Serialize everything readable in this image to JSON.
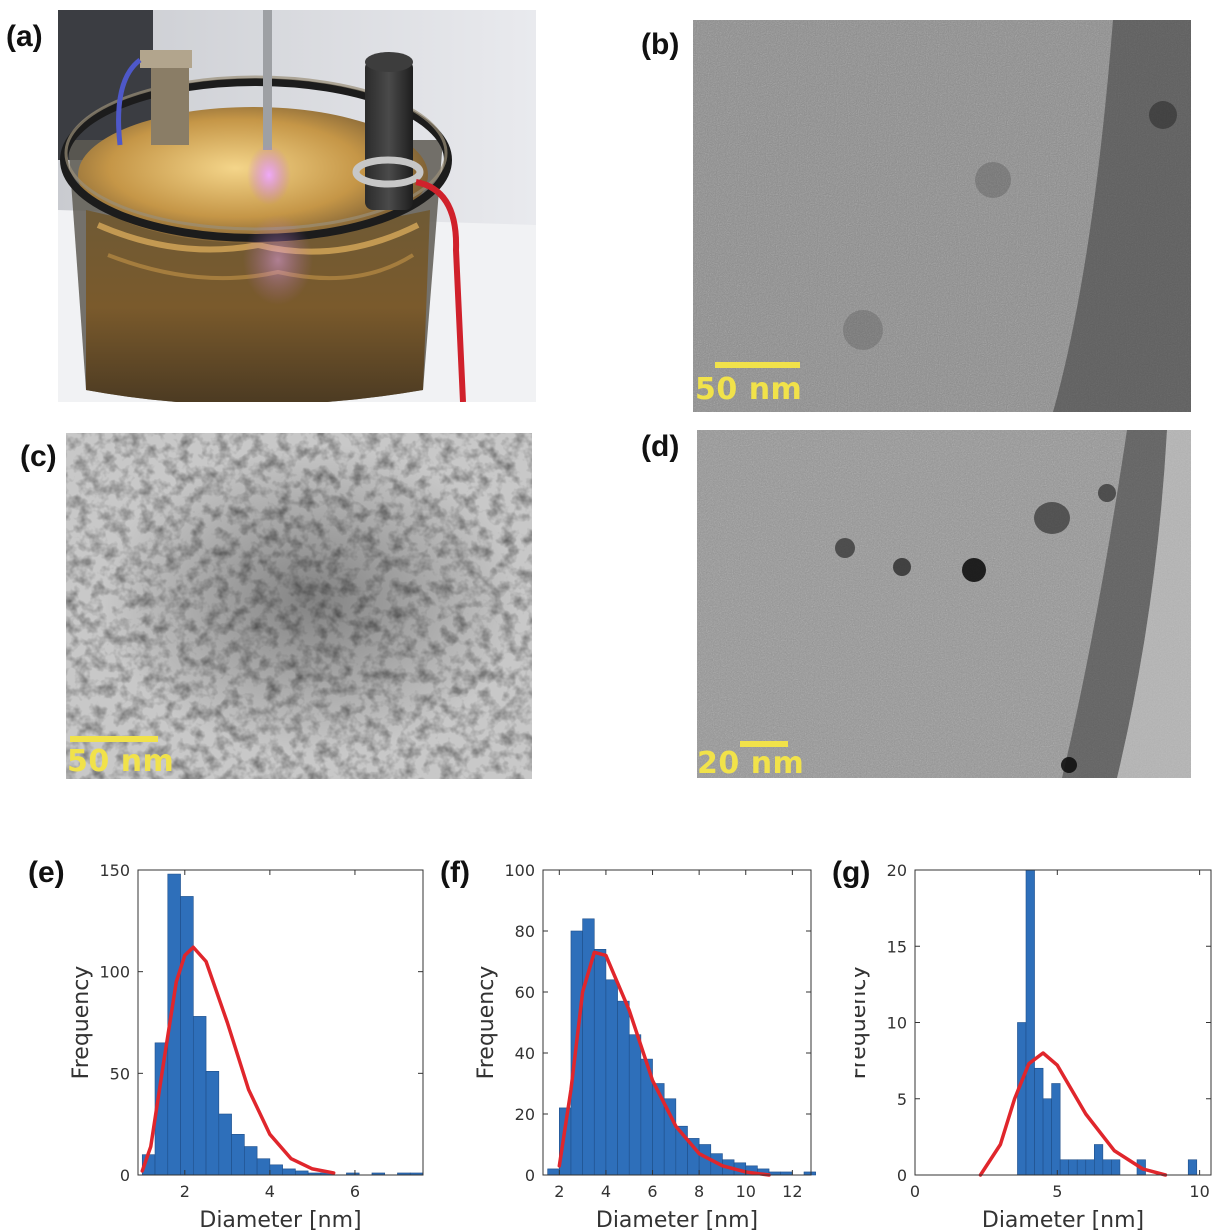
{
  "panels": {
    "a": {
      "label": "(a)"
    },
    "b": {
      "label": "(b)",
      "scalebar": "50 nm"
    },
    "c": {
      "label": "(c)",
      "scalebar": "50 nm"
    },
    "d": {
      "label": "(d)",
      "scalebar": "20 nm"
    }
  },
  "colors": {
    "bar": "#2e6fba",
    "fit": "#e0262c",
    "scalebar": "#f1e24a"
  },
  "chart_data": [
    {
      "panel": "(e)",
      "type": "bar",
      "xlabel": "Diameter [nm]",
      "ylabel": "Frequency",
      "xlim": [
        0.9,
        7.6
      ],
      "ylim": [
        0,
        150
      ],
      "xticks": [
        2,
        4,
        6
      ],
      "yticks": [
        0,
        50,
        100,
        150
      ],
      "bin_start": 1.0,
      "bin_width": 0.3,
      "values": [
        10,
        65,
        148,
        137,
        78,
        51,
        30,
        20,
        14,
        8,
        5,
        3,
        2,
        1,
        1,
        0,
        1,
        0,
        1,
        0,
        1,
        1
      ],
      "fit": {
        "type": "lognormal",
        "peak_x": 2.2,
        "peak_y": 112,
        "x": [
          1.0,
          1.2,
          1.5,
          1.8,
          2.0,
          2.2,
          2.5,
          3.0,
          3.5,
          4.0,
          4.5,
          5.0,
          5.5
        ],
        "y": [
          2,
          14,
          55,
          95,
          108,
          112,
          105,
          75,
          42,
          20,
          8,
          3,
          1
        ]
      }
    },
    {
      "panel": "(f)",
      "type": "bar",
      "xlabel": "Diameter [nm]",
      "ylabel": "Frequency",
      "xlim": [
        1.3,
        12.8
      ],
      "ylim": [
        0,
        100
      ],
      "xticks": [
        2,
        4,
        6,
        8,
        10,
        12
      ],
      "yticks": [
        0,
        20,
        40,
        60,
        80,
        100
      ],
      "bin_start": 1.5,
      "bin_width": 0.5,
      "values": [
        2,
        22,
        80,
        84,
        74,
        64,
        57,
        46,
        38,
        30,
        25,
        16,
        12,
        10,
        7,
        5,
        4,
        3,
        2,
        1,
        1,
        0,
        1,
        0
      ],
      "fit": {
        "type": "lognormal",
        "peak_x": 3.7,
        "peak_y": 74,
        "x": [
          2.0,
          2.5,
          3.0,
          3.5,
          4.0,
          5.0,
          6.0,
          7.0,
          8.0,
          9.0,
          10.0,
          11.0
        ],
        "y": [
          3,
          28,
          60,
          73,
          72,
          54,
          31,
          16,
          7,
          3,
          1,
          0
        ]
      }
    },
    {
      "panel": "(g)",
      "type": "bar",
      "xlabel": "Diameter [nm]",
      "ylabel": "Frequency",
      "xlim": [
        0,
        10.4
      ],
      "ylim": [
        0,
        20
      ],
      "xticks": [
        0,
        5,
        10
      ],
      "yticks": [
        0,
        5,
        10,
        15,
        20
      ],
      "bin_start": 3.6,
      "bin_width": 0.3,
      "values": [
        10,
        20,
        7,
        5,
        6,
        1,
        1,
        1,
        1,
        2,
        1,
        1,
        0,
        0,
        1,
        0,
        0,
        0,
        0,
        0,
        1
      ],
      "fit": {
        "type": "gaussian",
        "peak_x": 4.5,
        "peak_y": 8,
        "x": [
          2.3,
          3.0,
          3.5,
          4.0,
          4.5,
          5.0,
          5.5,
          6.0,
          7.0,
          8.0,
          8.8
        ],
        "y": [
          0,
          2,
          5,
          7.3,
          8,
          7.2,
          5.6,
          4,
          1.6,
          0.4,
          0
        ]
      }
    }
  ]
}
